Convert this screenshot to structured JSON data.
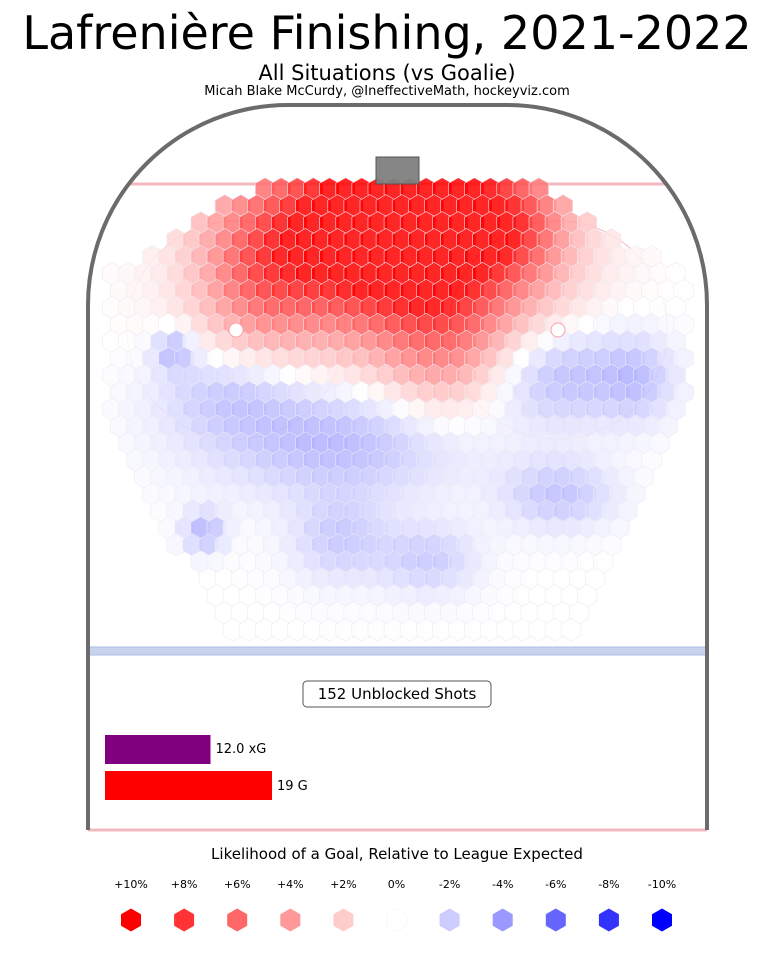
{
  "header": {
    "title": "Lafrenière Finishing, 2021-2022",
    "subtitle": "All Situations (vs Goalie)",
    "credit": "Micah Blake McCurdy, @IneffectiveMath, hockeyviz.com"
  },
  "summary": {
    "shots_label": "152 Unblocked Shots",
    "xg_label": "12.0 xG",
    "goals_label": "19 G",
    "xg_value": 12.0,
    "goals_value": 19,
    "xg_color": "#800080",
    "goals_color": "#ff0000"
  },
  "legend": {
    "title": "Likelihood of a Goal, Relative to League Expected",
    "items": [
      {
        "label": "+10%",
        "value": 10,
        "color": "#ff0000"
      },
      {
        "label": "+8%",
        "value": 8,
        "color": "#ff3333"
      },
      {
        "label": "+6%",
        "value": 6,
        "color": "#ff6666"
      },
      {
        "label": "+4%",
        "value": 4,
        "color": "#ff9999"
      },
      {
        "label": "+2%",
        "value": 2,
        "color": "#ffcccc"
      },
      {
        "label": "0%",
        "value": 0,
        "color": "#ffffff"
      },
      {
        "label": "-2%",
        "value": -2,
        "color": "#ccccff"
      },
      {
        "label": "-4%",
        "value": -4,
        "color": "#9999ff"
      },
      {
        "label": "-6%",
        "value": -6,
        "color": "#6666ff"
      },
      {
        "label": "-8%",
        "value": -8,
        "color": "#3333ff"
      },
      {
        "label": "-10%",
        "value": -10,
        "color": "#0000ff"
      }
    ]
  },
  "chart_data": {
    "type": "heatmap",
    "metric": "Likelihood of a goal relative to league expected (%)",
    "hot_zones": [
      {
        "zone": "crease / goal mouth",
        "value": 10
      },
      {
        "zone": "inner slot",
        "value": 8
      },
      {
        "zone": "high slot",
        "value": 5
      },
      {
        "zone": "between faceoff circles, below dots",
        "value": 3
      }
    ],
    "cold_zones": [
      {
        "zone": "point / blue line area",
        "value": -2
      },
      {
        "zone": "right faceoff circle, outer",
        "value": -3
      },
      {
        "zone": "high slot centre, far",
        "value": -4
      }
    ]
  }
}
